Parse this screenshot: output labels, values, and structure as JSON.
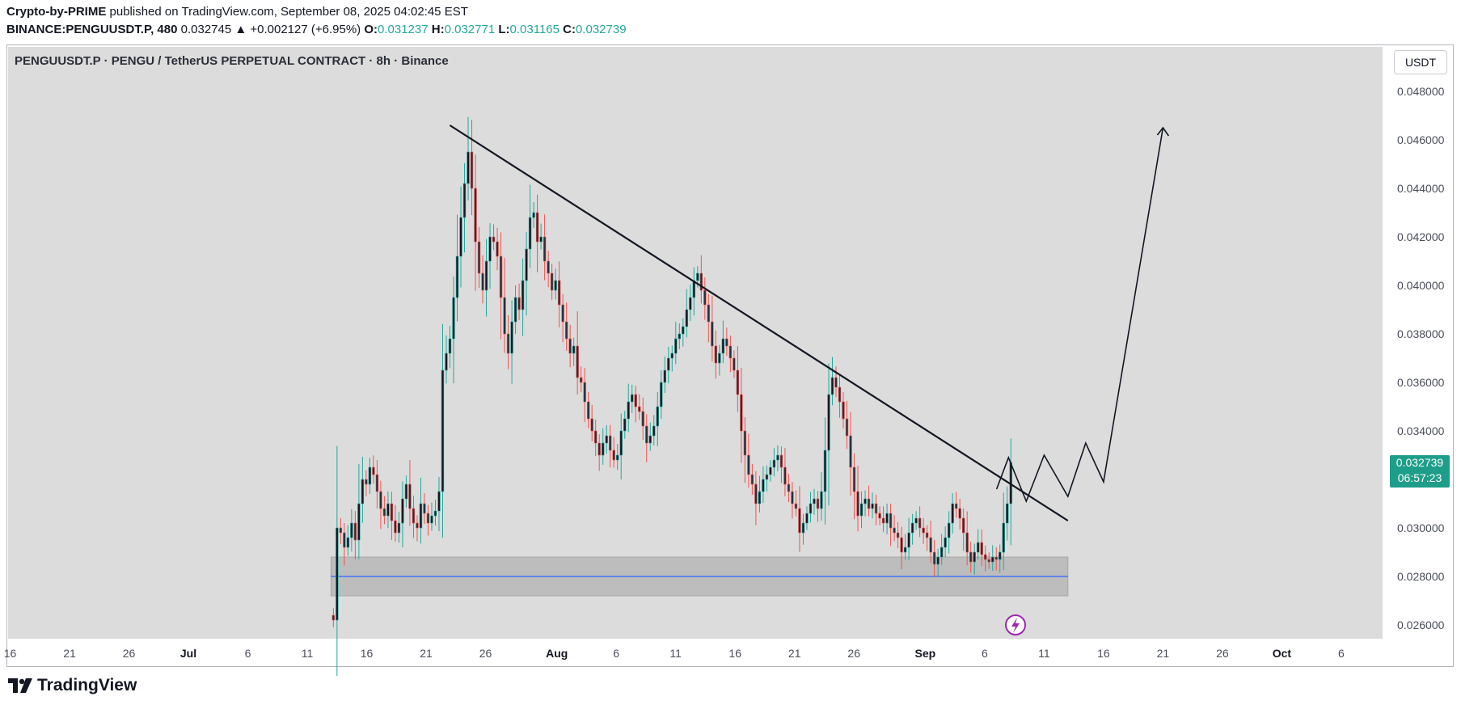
{
  "header": {
    "author": "Crypto-by-PRIME",
    "published_text": " published on TradingView.com, September 08, 2025 04:02:45 EST",
    "symbol_line": "BINANCE:PENGUUSDT.P, 480",
    "last": "0.032745",
    "change": "▲ +0.002127 (+6.95%)",
    "o_label": "O:",
    "o": "0.031237",
    "h_label": "H:",
    "h": "0.032771",
    "l_label": "L:",
    "l": "0.031165",
    "c_label": "C:",
    "c": "0.032739"
  },
  "chart_title": "PENGUUSDT.P · PENGU / TetherUS PERPETUAL CONTRACT · 8h · Binance",
  "currency_button": "USDT",
  "price_tag": {
    "price": "0.032739",
    "countdown": "06:57:23"
  },
  "brand": "TradingView",
  "colors": {
    "up": "#26a69a",
    "down": "#ef5350",
    "zone": "#bdbdbd",
    "support_line": "#2962ff",
    "tag": "#1e9e8a"
  },
  "chart_data": {
    "type": "candlestick",
    "title": "PENGUUSDT.P · PENGU / TetherUS PERPETUAL CONTRACT · 8h · Binance",
    "ylim": [
      0.0255,
      0.0492
    ],
    "y_ticks": [
      "0.048000",
      "0.046000",
      "0.044000",
      "0.042000",
      "0.040000",
      "0.038000",
      "0.036000",
      "0.034000",
      "0.032000",
      "0.030000",
      "0.028000",
      "0.026000"
    ],
    "y_tick_values": [
      0.048,
      0.046,
      0.044,
      0.042,
      0.04,
      0.038,
      0.036,
      0.034,
      0.032,
      0.03,
      0.028,
      0.026
    ],
    "x_ticks": [
      {
        "label": "16",
        "day": -15
      },
      {
        "label": "21",
        "day": -10
      },
      {
        "label": "26",
        "day": -5
      },
      {
        "label": "Jul",
        "day": 0,
        "bold": true
      },
      {
        "label": "6",
        "day": 5
      },
      {
        "label": "11",
        "day": 10
      },
      {
        "label": "16",
        "day": 15
      },
      {
        "label": "21",
        "day": 20
      },
      {
        "label": "26",
        "day": 25
      },
      {
        "label": "Aug",
        "day": 31,
        "bold": true
      },
      {
        "label": "6",
        "day": 36
      },
      {
        "label": "11",
        "day": 41
      },
      {
        "label": "16",
        "day": 46
      },
      {
        "label": "21",
        "day": 51
      },
      {
        "label": "26",
        "day": 56
      },
      {
        "label": "Sep",
        "day": 62,
        "bold": true
      },
      {
        "label": "6",
        "day": 67
      },
      {
        "label": "11",
        "day": 72
      },
      {
        "label": "16",
        "day": 77
      },
      {
        "label": "21",
        "day": 82
      },
      {
        "label": "26",
        "day": 87
      },
      {
        "label": "Oct",
        "day": 92,
        "bold": true
      },
      {
        "label": "6",
        "day": 97
      }
    ],
    "date_range": [
      "2025-07-13",
      "2025-09-08"
    ],
    "series_closes": [
      0.0262,
      0.03,
      0.0298,
      0.0292,
      0.0296,
      0.0302,
      0.0295,
      0.031,
      0.032,
      0.0318,
      0.0325,
      0.0322,
      0.0315,
      0.0308,
      0.0305,
      0.031,
      0.0303,
      0.0298,
      0.0302,
      0.0312,
      0.0318,
      0.0308,
      0.0302,
      0.03,
      0.031,
      0.0306,
      0.0302,
      0.0305,
      0.0307,
      0.0315,
      0.0365,
      0.0372,
      0.0378,
      0.0395,
      0.0412,
      0.0428,
      0.0442,
      0.0455,
      0.044,
      0.0418,
      0.0405,
      0.0398,
      0.041,
      0.042,
      0.0418,
      0.0412,
      0.0395,
      0.038,
      0.0372,
      0.0385,
      0.0395,
      0.039,
      0.0402,
      0.0415,
      0.0428,
      0.043,
      0.0418,
      0.042,
      0.041,
      0.0405,
      0.0398,
      0.0402,
      0.0392,
      0.0385,
      0.0378,
      0.0372,
      0.0375,
      0.0362,
      0.036,
      0.0352,
      0.0345,
      0.034,
      0.0335,
      0.033,
      0.0335,
      0.0338,
      0.0332,
      0.0328,
      0.033,
      0.034,
      0.0345,
      0.0352,
      0.0355,
      0.035,
      0.0348,
      0.0342,
      0.0335,
      0.0338,
      0.0342,
      0.035,
      0.036,
      0.0365,
      0.037,
      0.0372,
      0.0378,
      0.038,
      0.0383,
      0.039,
      0.0395,
      0.0402,
      0.0405,
      0.0398,
      0.0392,
      0.0385,
      0.0375,
      0.0368,
      0.0372,
      0.0378,
      0.0375,
      0.037,
      0.0365,
      0.0355,
      0.034,
      0.033,
      0.0322,
      0.0318,
      0.031,
      0.0315,
      0.032,
      0.0322,
      0.0325,
      0.0328,
      0.033,
      0.0325,
      0.0318,
      0.0315,
      0.031,
      0.0308,
      0.0298,
      0.0302,
      0.0306,
      0.031,
      0.0312,
      0.0308,
      0.0315,
      0.0332,
      0.0355,
      0.0362,
      0.0358,
      0.0352,
      0.0345,
      0.0338,
      0.0325,
      0.0315,
      0.0305,
      0.031,
      0.0312,
      0.0308,
      0.031,
      0.0306,
      0.0304,
      0.0302,
      0.0306,
      0.03,
      0.0298,
      0.0296,
      0.029,
      0.0292,
      0.0298,
      0.0302,
      0.0304,
      0.03,
      0.0298,
      0.0296,
      0.029,
      0.0285,
      0.0288,
      0.0292,
      0.0296,
      0.0302,
      0.031,
      0.0308,
      0.0304,
      0.0298,
      0.029,
      0.0286,
      0.029,
      0.0294,
      0.0289,
      0.0287,
      0.0286,
      0.0288,
      0.0287,
      0.029,
      0.0302,
      0.031,
      0.0327
    ],
    "trendline": {
      "from": {
        "day": 22,
        "price": 0.0466
      },
      "to": {
        "day": 74,
        "price": 0.0303
      }
    },
    "support_zone": {
      "from_day": 12,
      "to_day": 74,
      "top": 0.0288,
      "bottom": 0.0272
    },
    "support_level": 0.028,
    "projection": [
      {
        "day": 68,
        "price": 0.0316
      },
      {
        "day": 69,
        "price": 0.0329
      },
      {
        "day": 70.5,
        "price": 0.0311
      },
      {
        "day": 72,
        "price": 0.033
      },
      {
        "day": 74,
        "price": 0.0313
      },
      {
        "day": 75.5,
        "price": 0.0335
      },
      {
        "day": 77,
        "price": 0.0319
      },
      {
        "day": 82,
        "price": 0.0465
      }
    ]
  }
}
